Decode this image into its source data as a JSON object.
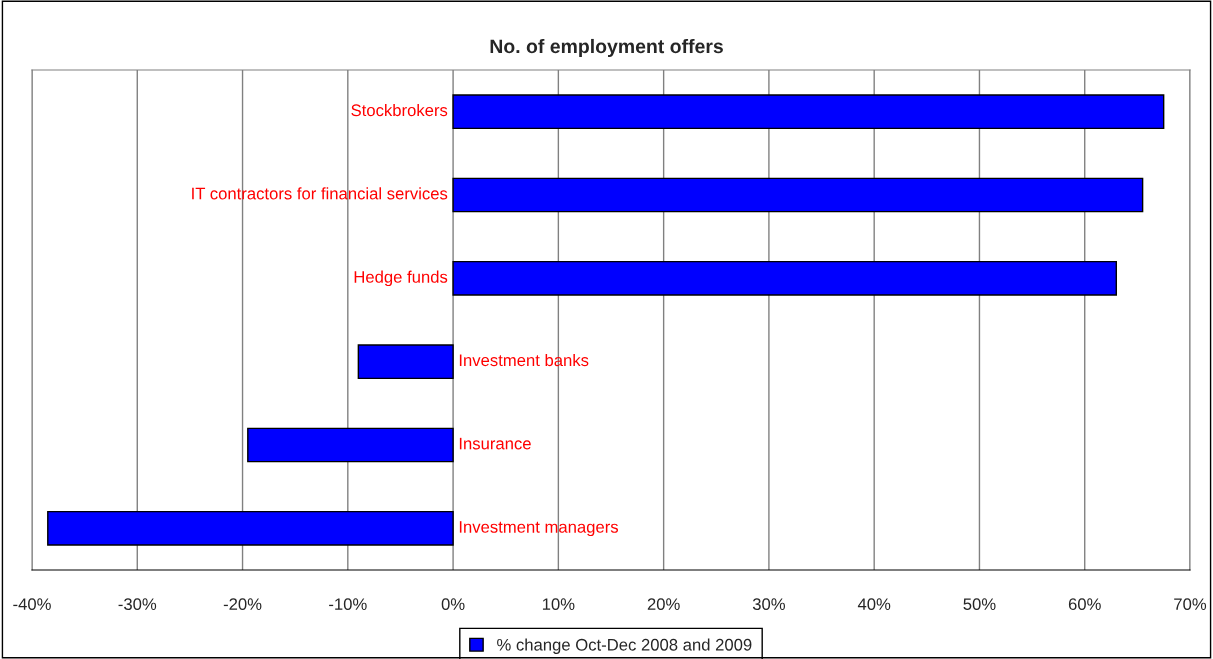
{
  "chart_data": {
    "type": "bar",
    "orientation": "horizontal",
    "title": "No. of employment offers",
    "categories": [
      "Stockbrokers",
      "IT contractors for financial services",
      "Hedge funds",
      "Investment banks",
      "Insurance",
      "Investment managers"
    ],
    "series": [
      {
        "name": "% change Oct-Dec 2008 and 2009",
        "color": "#0000ff",
        "values": [
          67.5,
          65.5,
          63,
          -9,
          -19.5,
          -38.5
        ]
      }
    ],
    "xlim": [
      -40,
      70
    ],
    "xticks": [
      {
        "value": -40,
        "label": "-40%"
      },
      {
        "value": -30,
        "label": "-30%"
      },
      {
        "value": -20,
        "label": "-20%"
      },
      {
        "value": -10,
        "label": "-10%"
      },
      {
        "value": 0,
        "label": "0%"
      },
      {
        "value": 10,
        "label": "10%"
      },
      {
        "value": 20,
        "label": "20%"
      },
      {
        "value": 30,
        "label": "30%"
      },
      {
        "value": 40,
        "label": "40%"
      },
      {
        "value": 50,
        "label": "50%"
      },
      {
        "value": 60,
        "label": "60%"
      },
      {
        "value": 70,
        "label": "70%"
      }
    ],
    "grid": "x",
    "legend": "bottom"
  }
}
